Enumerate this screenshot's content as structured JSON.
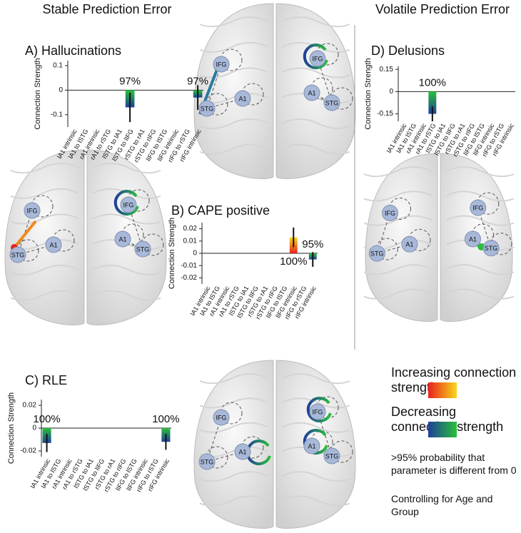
{
  "headers": {
    "stable": "Stable Prediction Error",
    "volatile": "Volatile Prediction Error"
  },
  "chart_data": [
    {
      "type": "bar",
      "title": "A) Hallucinations",
      "y_label": "Connection Strength",
      "categories": [
        "lA1 intrinsic",
        "lA1 to lSTG",
        "rA1 intrinsic",
        "rA1 to rSTG",
        "lSTG to lA1",
        "lSTG to lIFG",
        "rSTG to rA1",
        "rSTG to rIFG",
        "lIFG to lSTG",
        "lIFG intrinsic",
        "rIFG to rSTG",
        "rIFG intrinsic"
      ],
      "values": [
        null,
        null,
        null,
        null,
        null,
        -0.07,
        null,
        null,
        null,
        null,
        null,
        -0.03
      ],
      "errors": [
        null,
        null,
        null,
        null,
        null,
        0.06,
        null,
        null,
        null,
        null,
        null,
        0.05
      ],
      "probability_labels": [
        null,
        null,
        null,
        null,
        null,
        "97%",
        null,
        null,
        null,
        null,
        null,
        "97%"
      ],
      "ylim": [
        -0.15,
        0.12
      ],
      "yticks": [
        -0.1,
        0,
        0.1
      ]
    },
    {
      "type": "bar",
      "title": "B) CAPE positive",
      "y_label": "Connection Strength",
      "categories": [
        "lA1 intrinsic",
        "lA1 to lSTG",
        "rA1 intrinsic",
        "rA1 to rSTG",
        "lSTG to lA1",
        "lSTG to lIFG",
        "rSTG to rA1",
        "rSTG to rIFG",
        "lIFG to lSTG",
        "lIFG intrinsic",
        "rIFG to rSTG",
        "rIFG intrinsic"
      ],
      "values": [
        null,
        null,
        null,
        null,
        null,
        null,
        null,
        null,
        null,
        0.013,
        null,
        -0.005
      ],
      "errors": [
        null,
        null,
        null,
        null,
        null,
        null,
        null,
        null,
        null,
        0.008,
        null,
        0.006
      ],
      "probability_labels": [
        null,
        null,
        null,
        null,
        null,
        null,
        null,
        null,
        null,
        "100%",
        null,
        "95%"
      ],
      "ylim": [
        -0.025,
        0.025
      ],
      "yticks": [
        -0.02,
        -0.01,
        0,
        0.01,
        0.02
      ]
    },
    {
      "type": "bar",
      "title": "C) RLE",
      "y_label": "Connection Strength",
      "categories": [
        "lA1 intrinsic",
        "lA1 to lSTG",
        "rA1 intrinsic",
        "rA1 to rSTG",
        "lSTG to lA1",
        "lSTG to lIFG",
        "rSTG to rA1",
        "rSTG to rIFG",
        "lIFG to lSTG",
        "lIFG intrinsic",
        "rIFG to rSTG",
        "rIFG intrinsic"
      ],
      "values": [
        -0.013,
        null,
        null,
        null,
        null,
        null,
        null,
        null,
        null,
        null,
        null,
        -0.012
      ],
      "errors": [
        0.008,
        null,
        null,
        null,
        null,
        null,
        null,
        null,
        null,
        null,
        null,
        0.007
      ],
      "probability_labels": [
        "100%",
        null,
        null,
        null,
        null,
        null,
        null,
        null,
        null,
        null,
        null,
        "100%"
      ],
      "ylim": [
        -0.025,
        0.025
      ],
      "yticks": [
        -0.02,
        0,
        0.02
      ]
    },
    {
      "type": "bar",
      "title": "D) Delusions",
      "y_label": "Connection Strength",
      "categories": [
        "lA1 intrinsic",
        "lA1 to lSTG",
        "rA1 intrinsic",
        "rA1 to rSTG",
        "lSTG to lA1",
        "lSTG to lIFG",
        "rSTG to rA1",
        "rSTG to rIFG",
        "lIFG to lSTG",
        "lIFG intrinsic",
        "rIFG to rSTG",
        "rIFG intrinsic"
      ],
      "values": [
        null,
        null,
        null,
        -0.15,
        null,
        null,
        null,
        null,
        null,
        null,
        null,
        null
      ],
      "errors": [
        null,
        null,
        null,
        0.05,
        null,
        null,
        null,
        null,
        null,
        null,
        null,
        null
      ],
      "probability_labels": [
        null,
        null,
        null,
        "100%",
        null,
        null,
        null,
        null,
        null,
        null,
        null,
        null
      ],
      "ylim": [
        -0.2,
        0.17
      ],
      "yticks": [
        -0.15,
        0,
        0.15
      ]
    }
  ],
  "brains": [
    {
      "nodes": [
        "IFG",
        "A1",
        "STG",
        "IFG",
        "A1",
        "STG"
      ]
    },
    {
      "nodes": [
        "IFG",
        "A1",
        "STG",
        "IFG",
        "A1",
        "STG"
      ]
    },
    {
      "nodes": [
        "IFG",
        "A1",
        "STG",
        "IFG",
        "A1",
        "STG"
      ]
    },
    {
      "nodes": [
        "IFG",
        "A1",
        "STG",
        "IFG",
        "A1",
        "STG"
      ]
    }
  ],
  "legend": {
    "increasing": "Increasing connection strength",
    "decreasing": "Decreasing connection strength",
    "probability_note": ">95% probability that parameter is different from 0",
    "covariates": "Controlling for Age and Group"
  }
}
